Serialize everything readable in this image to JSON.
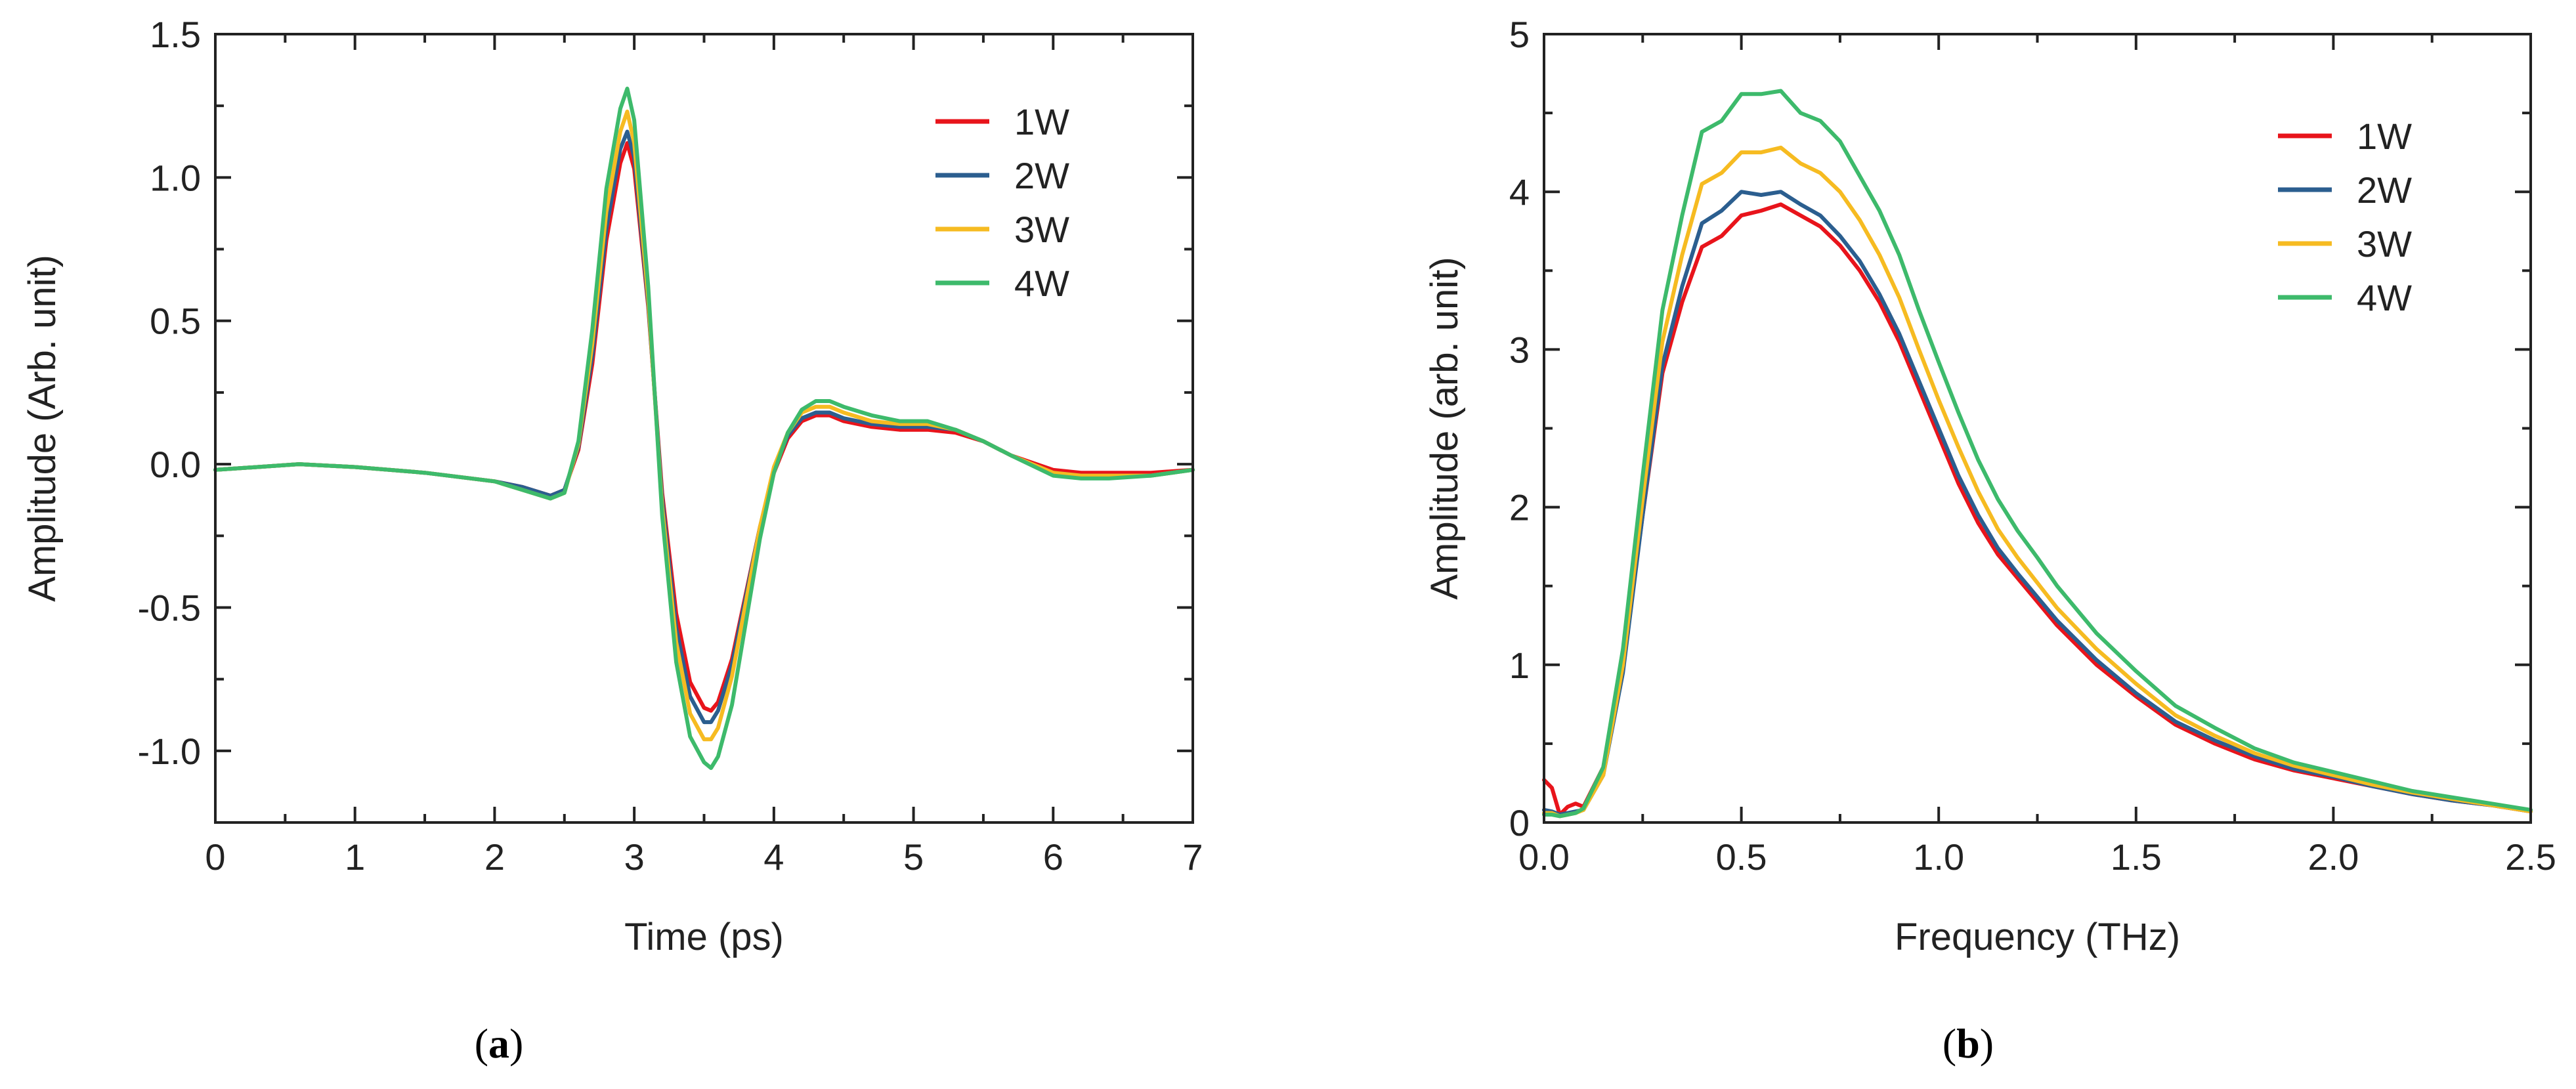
{
  "chart_data": [
    {
      "type": "line",
      "caption_letter": "a",
      "xlabel": "Time (ps)",
      "ylabel": "Amplitude (Arb. unit)",
      "xlim": [
        0,
        7
      ],
      "ylim": [
        -1.25,
        1.5
      ],
      "xticks": [
        0,
        1,
        2,
        3,
        4,
        5,
        6,
        7
      ],
      "xtick_labels": [
        "0",
        "1",
        "2",
        "3",
        "4",
        "5",
        "6",
        "7"
      ],
      "yticks": [
        -1.0,
        -0.5,
        0.0,
        0.5,
        1.0,
        1.5
      ],
      "ytick_labels": [
        "-1.0",
        "-0.5",
        "0.0",
        "0.5",
        "1.0",
        "1.5"
      ],
      "grid": false,
      "legend_position": "top-right",
      "x": [
        0,
        0.3,
        0.6,
        1.0,
        1.5,
        2.0,
        2.2,
        2.4,
        2.5,
        2.6,
        2.7,
        2.8,
        2.9,
        2.95,
        3.0,
        3.1,
        3.2,
        3.3,
        3.4,
        3.5,
        3.55,
        3.6,
        3.7,
        3.8,
        3.9,
        4.0,
        4.1,
        4.2,
        4.3,
        4.4,
        4.5,
        4.7,
        4.9,
        5.1,
        5.3,
        5.5,
        5.7,
        6.0,
        6.2,
        6.4,
        6.7,
        7.0
      ],
      "series": [
        {
          "name": "1W",
          "color": "#e8141b",
          "values": [
            -0.02,
            -0.01,
            0.0,
            -0.01,
            -0.03,
            -0.06,
            -0.08,
            -0.11,
            -0.09,
            0.05,
            0.35,
            0.78,
            1.05,
            1.12,
            1.03,
            0.55,
            -0.1,
            -0.52,
            -0.76,
            -0.85,
            -0.86,
            -0.83,
            -0.68,
            -0.45,
            -0.22,
            -0.03,
            0.09,
            0.15,
            0.17,
            0.17,
            0.15,
            0.13,
            0.12,
            0.12,
            0.11,
            0.08,
            0.03,
            -0.02,
            -0.03,
            -0.03,
            -0.03,
            -0.02
          ]
        },
        {
          "name": "2W",
          "color": "#2b5e8f",
          "values": [
            -0.02,
            -0.01,
            0.0,
            -0.01,
            -0.03,
            -0.06,
            -0.08,
            -0.11,
            -0.09,
            0.06,
            0.38,
            0.82,
            1.1,
            1.16,
            1.07,
            0.56,
            -0.12,
            -0.57,
            -0.81,
            -0.9,
            -0.9,
            -0.86,
            -0.7,
            -0.46,
            -0.22,
            -0.02,
            0.1,
            0.16,
            0.18,
            0.18,
            0.16,
            0.14,
            0.13,
            0.13,
            0.12,
            0.08,
            0.03,
            -0.03,
            -0.04,
            -0.04,
            -0.04,
            -0.02
          ]
        },
        {
          "name": "3W",
          "color": "#f6bb21",
          "values": [
            -0.02,
            -0.01,
            0.0,
            -0.01,
            -0.03,
            -0.06,
            -0.09,
            -0.12,
            -0.1,
            0.07,
            0.42,
            0.88,
            1.16,
            1.23,
            1.12,
            0.58,
            -0.15,
            -0.62,
            -0.87,
            -0.96,
            -0.96,
            -0.92,
            -0.74,
            -0.48,
            -0.22,
            -0.01,
            0.11,
            0.18,
            0.2,
            0.2,
            0.18,
            0.15,
            0.14,
            0.14,
            0.12,
            0.08,
            0.03,
            -0.03,
            -0.04,
            -0.04,
            -0.04,
            -0.02
          ]
        },
        {
          "name": "4W",
          "color": "#3dba6b",
          "values": [
            -0.02,
            -0.01,
            0.0,
            -0.01,
            -0.03,
            -0.06,
            -0.09,
            -0.12,
            -0.1,
            0.08,
            0.47,
            0.96,
            1.24,
            1.31,
            1.2,
            0.62,
            -0.18,
            -0.69,
            -0.95,
            -1.04,
            -1.06,
            -1.02,
            -0.84,
            -0.55,
            -0.26,
            -0.03,
            0.11,
            0.19,
            0.22,
            0.22,
            0.2,
            0.17,
            0.15,
            0.15,
            0.12,
            0.08,
            0.03,
            -0.04,
            -0.05,
            -0.05,
            -0.04,
            -0.02
          ]
        }
      ]
    },
    {
      "type": "line",
      "caption_letter": "b",
      "xlabel": "Frequency (THz)",
      "ylabel": "Amplitude (arb. unit)",
      "xlim": [
        0,
        2.5
      ],
      "ylim": [
        0,
        5
      ],
      "xticks": [
        0,
        0.5,
        1.0,
        1.5,
        2.0,
        2.5
      ],
      "xtick_labels": [
        "0.0",
        "0.5",
        "1.0",
        "1.5",
        "2.0",
        "2.5"
      ],
      "yticks": [
        0,
        1,
        2,
        3,
        4,
        5
      ],
      "ytick_labels": [
        "0",
        "1",
        "2",
        "3",
        "4",
        "5"
      ],
      "grid": false,
      "legend_position": "top-right",
      "x": [
        0,
        0.02,
        0.04,
        0.06,
        0.08,
        0.1,
        0.15,
        0.2,
        0.25,
        0.3,
        0.35,
        0.4,
        0.45,
        0.5,
        0.55,
        0.6,
        0.65,
        0.7,
        0.75,
        0.8,
        0.85,
        0.9,
        0.95,
        1.0,
        1.05,
        1.1,
        1.15,
        1.2,
        1.25,
        1.3,
        1.4,
        1.5,
        1.6,
        1.7,
        1.8,
        1.9,
        2.0,
        2.1,
        2.2,
        2.3,
        2.4,
        2.5
      ],
      "series": [
        {
          "name": "1W",
          "color": "#e8141b",
          "values": [
            0.27,
            0.22,
            0.05,
            0.1,
            0.12,
            0.1,
            0.35,
            1.0,
            1.95,
            2.85,
            3.3,
            3.65,
            3.72,
            3.85,
            3.88,
            3.92,
            3.85,
            3.78,
            3.66,
            3.5,
            3.3,
            3.05,
            2.75,
            2.45,
            2.15,
            1.9,
            1.7,
            1.55,
            1.4,
            1.25,
            1.0,
            0.8,
            0.62,
            0.5,
            0.4,
            0.33,
            0.28,
            0.23,
            0.18,
            0.14,
            0.11,
            0.07
          ]
        },
        {
          "name": "2W",
          "color": "#2b5e8f",
          "values": [
            0.08,
            0.07,
            0.05,
            0.06,
            0.07,
            0.08,
            0.3,
            0.95,
            1.95,
            2.9,
            3.4,
            3.8,
            3.88,
            4.0,
            3.98,
            4.0,
            3.92,
            3.85,
            3.72,
            3.56,
            3.35,
            3.1,
            2.8,
            2.5,
            2.2,
            1.95,
            1.74,
            1.58,
            1.43,
            1.28,
            1.03,
            0.82,
            0.64,
            0.52,
            0.42,
            0.34,
            0.29,
            0.23,
            0.18,
            0.14,
            0.11,
            0.07
          ]
        },
        {
          "name": "3W",
          "color": "#f6bb21",
          "values": [
            0.06,
            0.06,
            0.04,
            0.05,
            0.06,
            0.08,
            0.3,
            1.0,
            2.05,
            3.05,
            3.6,
            4.05,
            4.12,
            4.25,
            4.25,
            4.28,
            4.18,
            4.12,
            4.0,
            3.82,
            3.6,
            3.33,
            3.0,
            2.68,
            2.38,
            2.1,
            1.86,
            1.68,
            1.52,
            1.36,
            1.1,
            0.88,
            0.68,
            0.55,
            0.44,
            0.36,
            0.3,
            0.24,
            0.19,
            0.15,
            0.11,
            0.07
          ]
        },
        {
          "name": "4W",
          "color": "#3dba6b",
          "values": [
            0.05,
            0.05,
            0.04,
            0.05,
            0.06,
            0.09,
            0.35,
            1.1,
            2.2,
            3.25,
            3.85,
            4.38,
            4.45,
            4.62,
            4.62,
            4.64,
            4.5,
            4.45,
            4.32,
            4.1,
            3.88,
            3.6,
            3.25,
            2.92,
            2.6,
            2.3,
            2.05,
            1.85,
            1.68,
            1.5,
            1.2,
            0.96,
            0.74,
            0.6,
            0.47,
            0.38,
            0.32,
            0.26,
            0.2,
            0.16,
            0.12,
            0.08
          ]
        }
      ]
    }
  ]
}
